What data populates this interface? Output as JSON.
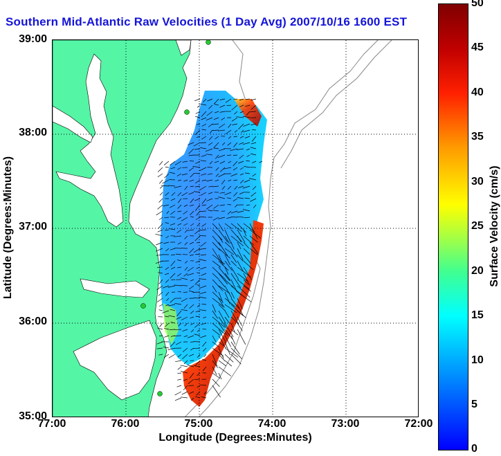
{
  "title": "Southern Mid-Atlantic Raw Velocities (1 Day Avg) 2007/10/16 1600 EST",
  "xaxis": {
    "label": "Longitude (Degrees:Minutes)",
    "ticks": [
      "77:00",
      "76:00",
      "75:00",
      "74:00",
      "73:00",
      "72:00"
    ]
  },
  "yaxis": {
    "label": "Latitude (Degrees:Minutes)",
    "ticks": [
      "39:00",
      "38:00",
      "37:00",
      "36:00",
      "35:00"
    ]
  },
  "colorbar": {
    "label": "Surface Velocity (cm/s)",
    "ticks": [
      "50",
      "45",
      "40",
      "35",
      "30",
      "25",
      "20",
      "15",
      "10",
      "5",
      "0"
    ]
  },
  "colors": {
    "land": "#55f5a6",
    "title": "#1414d8",
    "station": "#22cc33"
  }
}
